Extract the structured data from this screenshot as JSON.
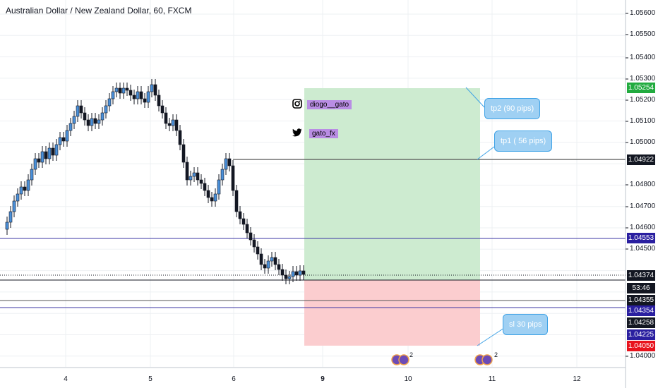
{
  "header": {
    "title": "Australian Dollar / New Zealand Dollar, 60, FXCM"
  },
  "colors": {
    "up": "#4a90d9",
    "down": "#131722",
    "grid": "#eef0f3",
    "target": "#cdebd0",
    "stop": "#fbcdcf",
    "callout": "#9fd0f3",
    "green_label": "#22ab3f",
    "red_label": "#e8121c",
    "navy_label": "#2a1fa0",
    "black_label": "#131722"
  },
  "y_axis": {
    "ticks": [
      "1.05600",
      "1.05500",
      "1.05400",
      "1.05300",
      "1.05200",
      "1.05100",
      "1.05000",
      "1.04800",
      "1.04700",
      "1.04600",
      "1.04500",
      "1.04000"
    ]
  },
  "x_axis": {
    "ticks": [
      {
        "label": "4",
        "bold": false
      },
      {
        "label": "5",
        "bold": false
      },
      {
        "label": "6",
        "bold": false
      },
      {
        "label": "9",
        "bold": true
      },
      {
        "label": "10",
        "bold": false
      },
      {
        "label": "11",
        "bold": false
      },
      {
        "label": "12",
        "bold": false
      }
    ]
  },
  "price_labels": [
    {
      "text": "1.05254",
      "color": "#22ab3f"
    },
    {
      "text": "1.04922",
      "color": "#131722"
    },
    {
      "text": "1.04553",
      "color": "#2a1fa0"
    },
    {
      "text": "1.04374",
      "color": "#131722"
    },
    {
      "text": "53:46",
      "color": "#131722"
    },
    {
      "text": "1.04355",
      "color": "#131722"
    },
    {
      "text": "1.04354",
      "color": "#2a1fa0"
    },
    {
      "text": "1.04258",
      "color": "#131722"
    },
    {
      "text": "1.04225",
      "color": "#2a1fa0"
    },
    {
      "text": "1.04050",
      "color": "#e8121c"
    }
  ],
  "callouts": {
    "tp2": "tp2 (90 pips)",
    "tp1": "tp1 ( 56 pips)",
    "sl": "sl 30 pips"
  },
  "social": {
    "instagram": "diogo__gato",
    "twitter": "gato_fx"
  },
  "events": [
    {
      "count": "2"
    },
    {
      "count": "2"
    }
  ],
  "icons": [
    "instagram-icon",
    "twitter-icon",
    "event-icon"
  ]
}
